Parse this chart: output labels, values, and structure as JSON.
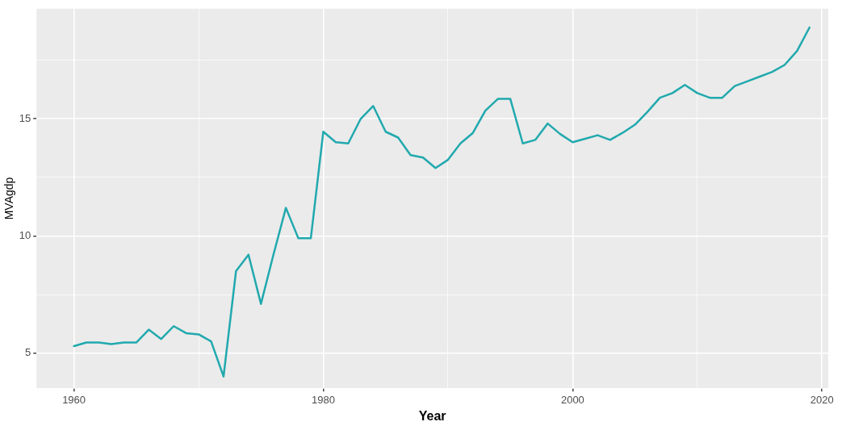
{
  "chart_data": {
    "type": "line",
    "xlabel": "Year",
    "ylabel": "MVAgdp",
    "x": [
      1960,
      1961,
      1962,
      1963,
      1964,
      1965,
      1966,
      1967,
      1968,
      1969,
      1970,
      1971,
      1972,
      1973,
      1974,
      1975,
      1976,
      1977,
      1978,
      1979,
      1980,
      1981,
      1982,
      1983,
      1984,
      1985,
      1986,
      1987,
      1988,
      1989,
      1990,
      1991,
      1992,
      1993,
      1994,
      1995,
      1996,
      1997,
      1998,
      1999,
      2000,
      2001,
      2002,
      2003,
      2004,
      2005,
      2006,
      2007,
      2008,
      2009,
      2010,
      2011,
      2012,
      2013,
      2014,
      2015,
      2016,
      2017,
      2018,
      2019
    ],
    "series": [
      {
        "color": "#21a9ae",
        "values": [
          5.3,
          5.45,
          5.45,
          5.38,
          5.45,
          5.45,
          6.0,
          5.6,
          6.15,
          5.85,
          5.8,
          5.5,
          4.0,
          8.5,
          9.2,
          7.1,
          9.2,
          11.2,
          9.9,
          9.9,
          14.45,
          14.0,
          13.95,
          15.0,
          15.55,
          14.45,
          14.2,
          13.45,
          13.35,
          12.9,
          13.25,
          13.95,
          14.4,
          15.35,
          15.85,
          15.85,
          13.95,
          14.1,
          14.8,
          14.35,
          14.0,
          14.15,
          14.3,
          14.1,
          14.4,
          14.75,
          15.3,
          15.9,
          16.1,
          16.45,
          16.1,
          15.9,
          15.9,
          16.4,
          16.6,
          16.8,
          17.0,
          17.3,
          17.9,
          18.9
        ]
      }
    ],
    "xlim": [
      1957,
      2020.5
    ],
    "ylim": [
      3.5,
      19.7
    ],
    "xticks": [
      1960,
      {
        "value": 1970,
        "label": null
      },
      1980,
      {
        "value": 1990,
        "label": null
      },
      2000,
      {
        "value": 2010,
        "label": null
      },
      2020
    ],
    "yticks": [
      {
        "value": 3.5,
        "label": null
      },
      5,
      {
        "value": 7.5,
        "label": null
      },
      10,
      {
        "value": 12.5,
        "label": null
      },
      15,
      {
        "value": 17.5,
        "label": null
      }
    ],
    "grid": true,
    "marker": "none",
    "line_style": "solid"
  }
}
